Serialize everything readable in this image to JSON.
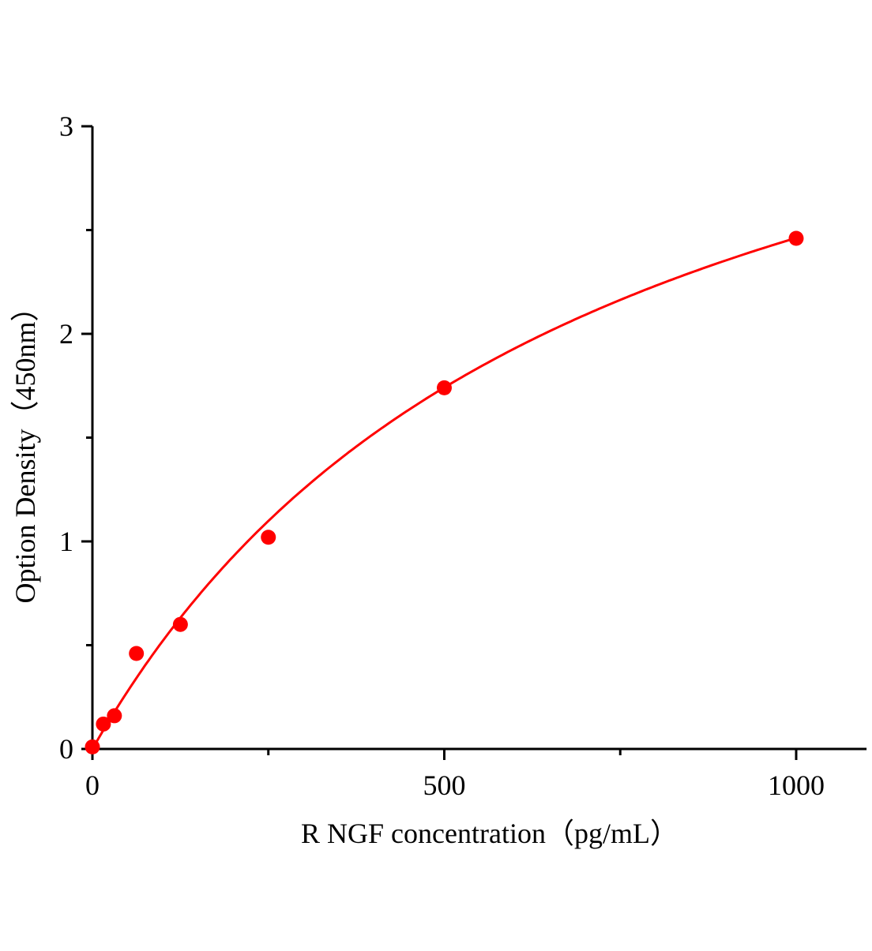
{
  "chart_data": {
    "type": "scatter",
    "title": "",
    "xlabel": "R NGF  concentration（pg/mL）",
    "ylabel": "Option Density（450nm）",
    "xlim": [
      0,
      1100
    ],
    "ylim": [
      0,
      3
    ],
    "x_ticks": [
      0,
      500,
      1000
    ],
    "x_minor_ticks": [
      250,
      750
    ],
    "y_ticks": [
      0,
      1,
      2,
      3
    ],
    "y_minor_ticks": [
      0.5,
      1.5,
      2.5
    ],
    "grid": false,
    "legend": "none",
    "series": [
      {
        "x": [
          0,
          15.6,
          31.25,
          62.5,
          125,
          250,
          500,
          1000
        ],
        "y": [
          0.01,
          0.12,
          0.16,
          0.46,
          0.6,
          1.02,
          1.74,
          2.46
        ],
        "color": "#ff0000",
        "marker": "circle"
      }
    ],
    "fit_curve": {
      "type": "fitted curve",
      "color": "#ff0000"
    }
  }
}
